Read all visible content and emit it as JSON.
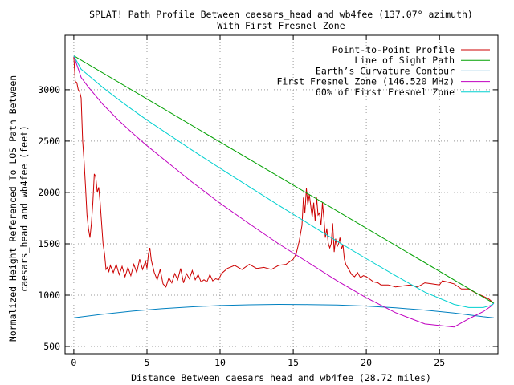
{
  "chart_data": {
    "type": "line",
    "title": "SPLAT! Path Profile Between caesars_head and wb4fee (137.07° azimuth)",
    "subtitle": "With First Fresnel Zone",
    "xlabel": "Distance Between caesars_head and wb4fee (28.72 miles)",
    "ylabel": "Normalized Height Referenced To LOS Path Between caesars_head and wb4fee (feet)",
    "ylabel_lines": [
      "Normalized Height Referenced To LOS Path Between",
      "caesars_head and wb4fee (feet)"
    ],
    "xlim": [
      -0.6,
      29.0
    ],
    "ylim": [
      430,
      3530
    ],
    "xticks": [
      0,
      5,
      10,
      15,
      20,
      25
    ],
    "yticks": [
      500,
      1000,
      1500,
      2000,
      2500,
      3000
    ],
    "grid": true,
    "legend_position": "top-right",
    "series": [
      {
        "name": "Point-to-Point Profile",
        "color": "#cc0000",
        "x": [
          0,
          0.1,
          0.2,
          0.3,
          0.4,
          0.5,
          0.6,
          0.7,
          0.8,
          0.9,
          1.0,
          1.1,
          1.2,
          1.3,
          1.4,
          1.5,
          1.6,
          1.7,
          1.8,
          1.9,
          2.0,
          2.1,
          2.2,
          2.3,
          2.4,
          2.5,
          2.7,
          2.9,
          3.1,
          3.3,
          3.5,
          3.7,
          3.9,
          4.1,
          4.3,
          4.5,
          4.7,
          4.9,
          5.0,
          5.1,
          5.2,
          5.3,
          5.5,
          5.7,
          5.9,
          6.1,
          6.3,
          6.5,
          6.7,
          6.9,
          7.1,
          7.3,
          7.5,
          7.7,
          7.9,
          8.1,
          8.3,
          8.5,
          8.7,
          8.9,
          9.1,
          9.3,
          9.5,
          9.7,
          9.9,
          10.1,
          10.5,
          11.0,
          11.5,
          12.0,
          12.5,
          13.0,
          13.5,
          14.0,
          14.5,
          14.8,
          15.0,
          15.2,
          15.4,
          15.6,
          15.7,
          15.8,
          15.9,
          16.0,
          16.1,
          16.2,
          16.3,
          16.4,
          16.5,
          16.6,
          16.7,
          16.8,
          16.9,
          17.0,
          17.1,
          17.2,
          17.3,
          17.4,
          17.5,
          17.6,
          17.7,
          17.8,
          17.9,
          18.0,
          18.1,
          18.2,
          18.3,
          18.4,
          18.5,
          18.6,
          18.8,
          19.0,
          19.2,
          19.4,
          19.6,
          19.8,
          20.0,
          20.2,
          20.5,
          20.8,
          21.0,
          21.5,
          22.0,
          22.5,
          23.0,
          23.5,
          24.0,
          24.5,
          25.0,
          25.2,
          25.5,
          26.0,
          26.5,
          27.0,
          27.5,
          28.0,
          28.4,
          28.72
        ],
        "y": [
          3320,
          3080,
          3070,
          3000,
          2980,
          2920,
          2500,
          2300,
          2050,
          1780,
          1650,
          1560,
          1700,
          1900,
          2180,
          2150,
          2000,
          2050,
          1900,
          1700,
          1500,
          1400,
          1250,
          1270,
          1230,
          1290,
          1220,
          1300,
          1200,
          1280,
          1180,
          1270,
          1190,
          1300,
          1220,
          1350,
          1250,
          1330,
          1260,
          1400,
          1460,
          1340,
          1220,
          1150,
          1250,
          1110,
          1080,
          1170,
          1120,
          1210,
          1150,
          1260,
          1120,
          1210,
          1160,
          1240,
          1150,
          1200,
          1130,
          1150,
          1130,
          1200,
          1140,
          1160,
          1150,
          1210,
          1260,
          1290,
          1250,
          1300,
          1260,
          1270,
          1250,
          1290,
          1300,
          1330,
          1350,
          1400,
          1520,
          1680,
          1950,
          1800,
          2040,
          1880,
          1980,
          1870,
          1760,
          1900,
          1720,
          1950,
          1780,
          1800,
          1680,
          1900,
          1750,
          1560,
          1650,
          1500,
          1460,
          1500,
          1700,
          1420,
          1550,
          1470,
          1500,
          1560,
          1450,
          1490,
          1350,
          1300,
          1250,
          1200,
          1180,
          1220,
          1170,
          1190,
          1180,
          1160,
          1130,
          1120,
          1100,
          1100,
          1080,
          1090,
          1100,
          1080,
          1120,
          1110,
          1100,
          1140,
          1130,
          1110,
          1060,
          1060,
          1020,
          990,
          960,
          920
        ]
      },
      {
        "name": "Line of Sight Path",
        "color": "#00a000",
        "x": [
          0,
          28.72
        ],
        "y": [
          3330,
          920
        ]
      },
      {
        "name": "Earth’s Curvature Contour",
        "color": "#0080c0",
        "x": [
          0,
          2,
          4,
          6,
          8,
          10,
          12,
          14,
          16,
          18,
          20,
          22,
          24,
          26,
          28,
          28.72
        ],
        "y": [
          780,
          815,
          845,
          868,
          886,
          899,
          906,
          910,
          909,
          904,
          894,
          877,
          855,
          826,
          790,
          780
        ]
      },
      {
        "name": "First Fresnel Zone (146.520 MHz)",
        "color": "#c000c0",
        "x": [
          0,
          0.5,
          1,
          2,
          3,
          4,
          5,
          6,
          8,
          10,
          12,
          14,
          16,
          18,
          20,
          22,
          24,
          26,
          27,
          28,
          28.5,
          28.72
        ],
        "y": [
          3330,
          3120,
          3025,
          2855,
          2710,
          2580,
          2455,
          2340,
          2110,
          1895,
          1695,
          1500,
          1320,
          1140,
          975,
          830,
          720,
          690,
          770,
          840,
          890,
          920
        ]
      },
      {
        "name": "60% of First Fresnel Zone",
        "color": "#00d0d0",
        "x": [
          0,
          0.5,
          1,
          2,
          3,
          4,
          5,
          6,
          8,
          10,
          12,
          14,
          16,
          18,
          20,
          22,
          24,
          26,
          27,
          28,
          28.5,
          28.72
        ],
        "y": [
          3330,
          3200,
          3140,
          3020,
          2910,
          2805,
          2705,
          2610,
          2420,
          2235,
          2055,
          1875,
          1700,
          1525,
          1355,
          1190,
          1030,
          910,
          880,
          880,
          900,
          920
        ]
      }
    ]
  }
}
